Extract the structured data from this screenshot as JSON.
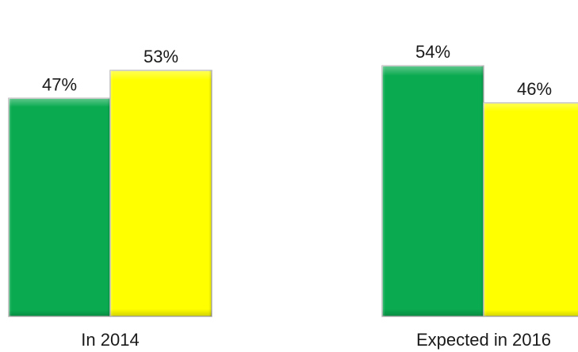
{
  "chart_data": {
    "type": "bar",
    "categories": [
      "In 2014",
      "Expected in 2016"
    ],
    "series": [
      {
        "values": [
          47,
          54
        ],
        "labels": [
          "47%",
          "54%"
        ],
        "color": "#0aaa50"
      },
      {
        "values": [
          53,
          46
        ],
        "labels": [
          "53%",
          "46%"
        ],
        "color": "#ffff00"
      }
    ],
    "ylim": [
      0,
      60
    ],
    "grid": false,
    "legend": "none"
  }
}
